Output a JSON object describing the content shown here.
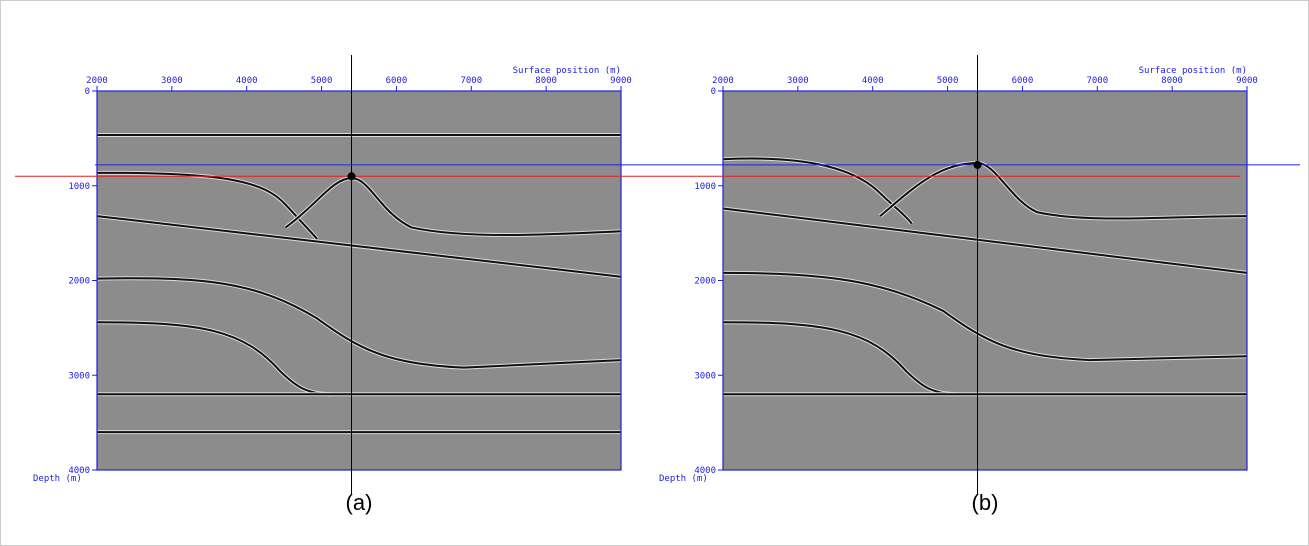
{
  "chart_data": [
    {
      "type": "image",
      "label": "(a)",
      "xlabel": "Surface position (m)",
      "ylabel": "Depth (m)",
      "xlim": [
        2000,
        9000
      ],
      "ylim": [
        0,
        4000
      ],
      "xticks": [
        2000,
        3000,
        4000,
        5000,
        6000,
        7000,
        8000,
        9000
      ],
      "yticks": [
        0,
        1000,
        2000,
        3000,
        4000
      ],
      "marker": {
        "x": 5400,
        "y": 900
      },
      "line_color": "#e02020",
      "axis_color": "#2020e0"
    },
    {
      "type": "image",
      "label": "(b)",
      "xlabel": "Surface position (m)",
      "ylabel": "Depth (m)",
      "xlim": [
        2000,
        9000
      ],
      "ylim": [
        0,
        4000
      ],
      "xticks": [
        2000,
        3000,
        4000,
        5000,
        6000,
        7000,
        8000,
        9000
      ],
      "yticks": [
        0,
        1000,
        2000,
        3000,
        4000
      ],
      "marker": {
        "x": 5400,
        "y": 780
      },
      "line_color": "#2020e0",
      "axis_color": "#2020e0"
    }
  ]
}
